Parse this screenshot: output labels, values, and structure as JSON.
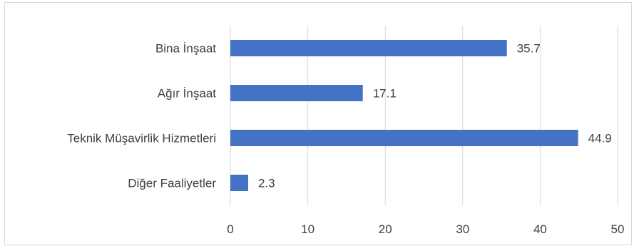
{
  "chart_data": {
    "type": "bar",
    "orientation": "horizontal",
    "categories": [
      "Bina İnşaat",
      "Ağır İnşaat ",
      "Teknik Müşavirlik Hizmetleri",
      "Diğer Faaliyetler"
    ],
    "values": [
      35.7,
      17.1,
      44.9,
      2.3
    ],
    "data_labels": [
      "35.7",
      "17.1",
      "44.9",
      "2.3"
    ],
    "xlim": [
      0,
      50
    ],
    "xticks": [
      0,
      10,
      20,
      30,
      40,
      50
    ],
    "xtick_labels": [
      "0",
      "10",
      "20",
      "30",
      "40",
      "50"
    ],
    "grid": "vertical",
    "legend": "none",
    "bar_color": "#4472c4",
    "grid_color": "#d9d9d9",
    "title": "",
    "xlabel": "",
    "ylabel": ""
  }
}
